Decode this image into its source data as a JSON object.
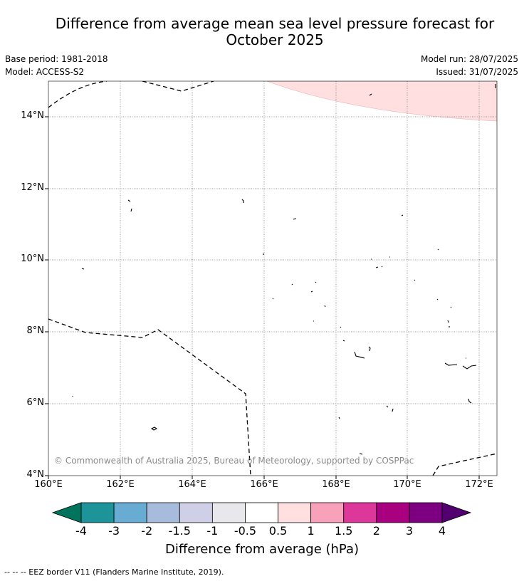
{
  "title_line1": "Difference from average mean sea level pressure forecast for",
  "title_line2": "October 2025",
  "base_period": "Base period: 1981-2018",
  "model": "Model: ACCESS-S2",
  "model_run": "Model run: 28/07/2025",
  "issued": "Issued: 31/07/2025",
  "lon_labels": [
    "160°E",
    "162°E",
    "164°E",
    "166°E",
    "168°E",
    "170°E",
    "172°E"
  ],
  "lat_labels": [
    "14°N",
    "12°N",
    "10°N",
    "8°N",
    "6°N",
    "4°N"
  ],
  "copyright": "© Commonwealth of Australia 2025, Bureau of Meteorology, supported by COSPPac",
  "colorbar": {
    "ticks": [
      "-4",
      "-3",
      "-2",
      "-1.5",
      "-1",
      "-0.5",
      "0.5",
      "1",
      "1.5",
      "2",
      "3",
      "4"
    ],
    "colors": [
      "#1d9499",
      "#68acd4",
      "#a7bcdd",
      "#cfd0e8",
      "#e8e7ec",
      "#ffffff",
      "#ffdfdf",
      "#f7a1bb",
      "#dd3799",
      "#a8007e",
      "#7d0081"
    ],
    "under_color": "#00745c",
    "over_color": "#520070",
    "label": "Difference from average (hPa)"
  },
  "legend": "-- -- -- EEZ border V11 (Flanders Marine Institute, 2019).",
  "map": {
    "lon_range": [
      160,
      172.5
    ],
    "lat_range": [
      4,
      15
    ],
    "shaded_region_color": "#ffdfdf"
  }
}
